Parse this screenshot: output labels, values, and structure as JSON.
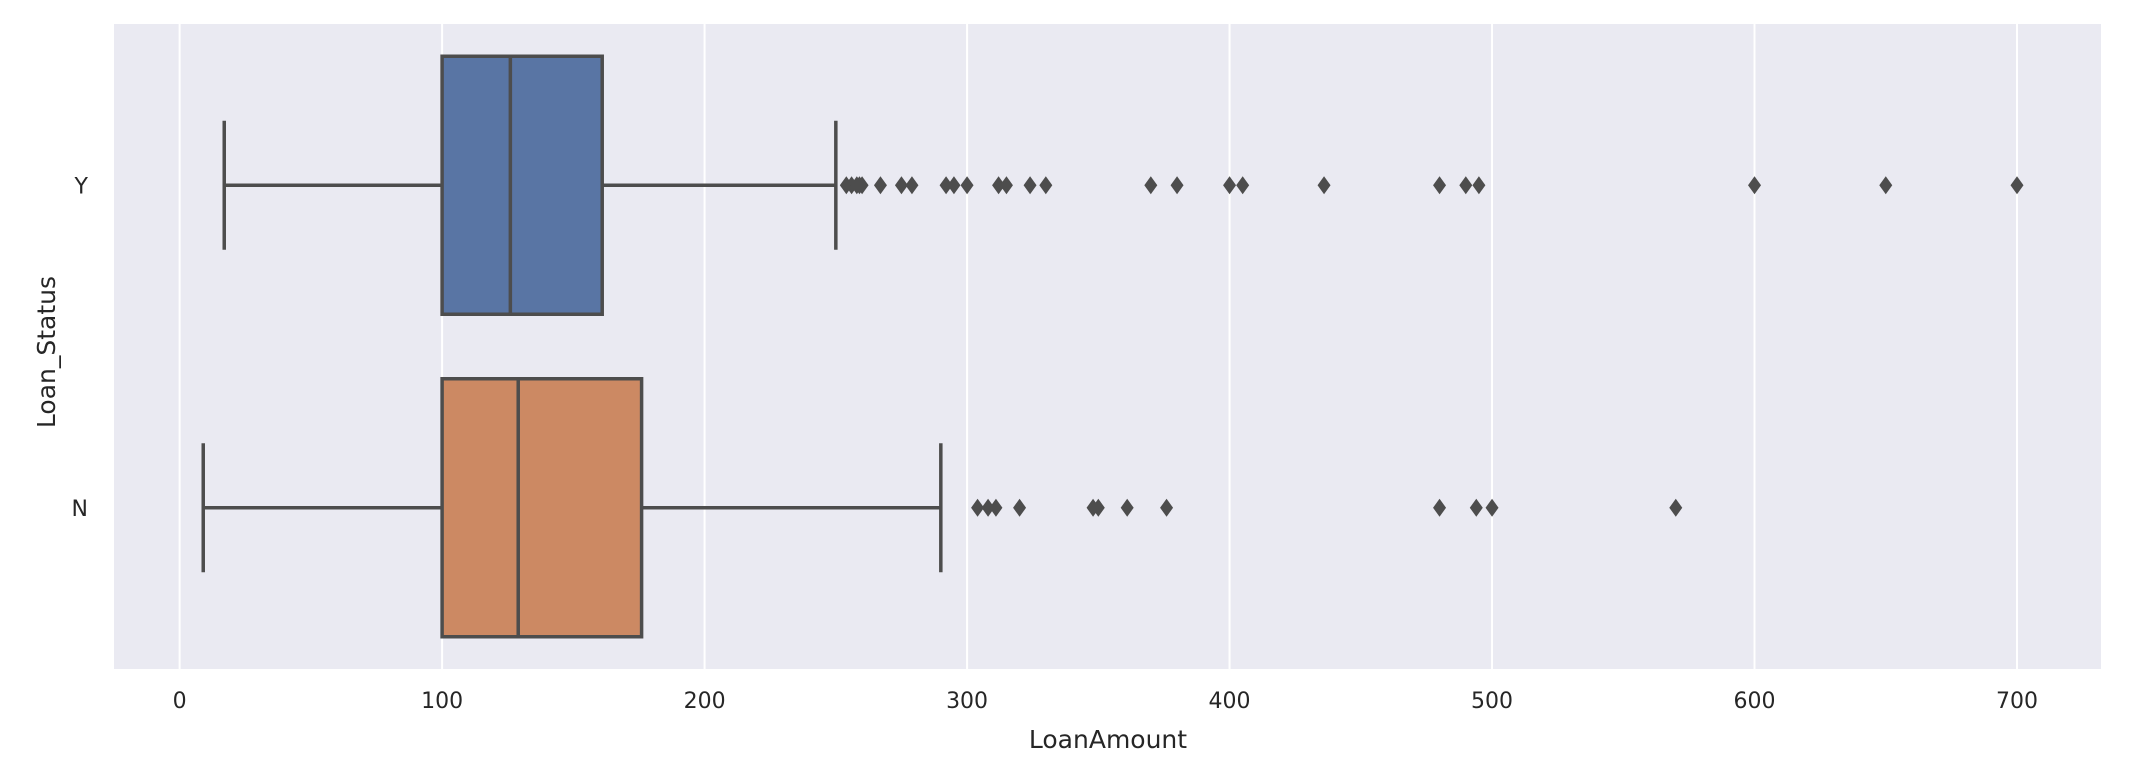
{
  "chart_data": {
    "type": "box",
    "orientation": "horizontal",
    "title": "",
    "xlabel": "LoanAmount",
    "ylabel": "Loan_Status",
    "xlim": [
      -25,
      732
    ],
    "xticks": [
      0,
      100,
      200,
      300,
      400,
      500,
      600,
      700
    ],
    "grid": "vertical lines only",
    "categories": [
      "Y",
      "N"
    ],
    "series": [
      {
        "category": "Y",
        "color": "#5975a4",
        "whisker_low": 17,
        "q1": 100,
        "median": 126,
        "q3": 161,
        "whisker_high": 250,
        "outliers": [
          254,
          256,
          258,
          259,
          260,
          267,
          275,
          279,
          292,
          295,
          300,
          312,
          315,
          324,
          330,
          370,
          380,
          400,
          405,
          436,
          480,
          490,
          495,
          600,
          650,
          700
        ]
      },
      {
        "category": "N",
        "color": "#cc8963",
        "whisker_low": 9,
        "q1": 100,
        "median": 129,
        "q3": 176,
        "whisker_high": 290,
        "outliers": [
          304,
          308,
          311,
          320,
          348,
          350,
          361,
          376,
          480,
          494,
          500,
          570
        ]
      }
    ]
  }
}
